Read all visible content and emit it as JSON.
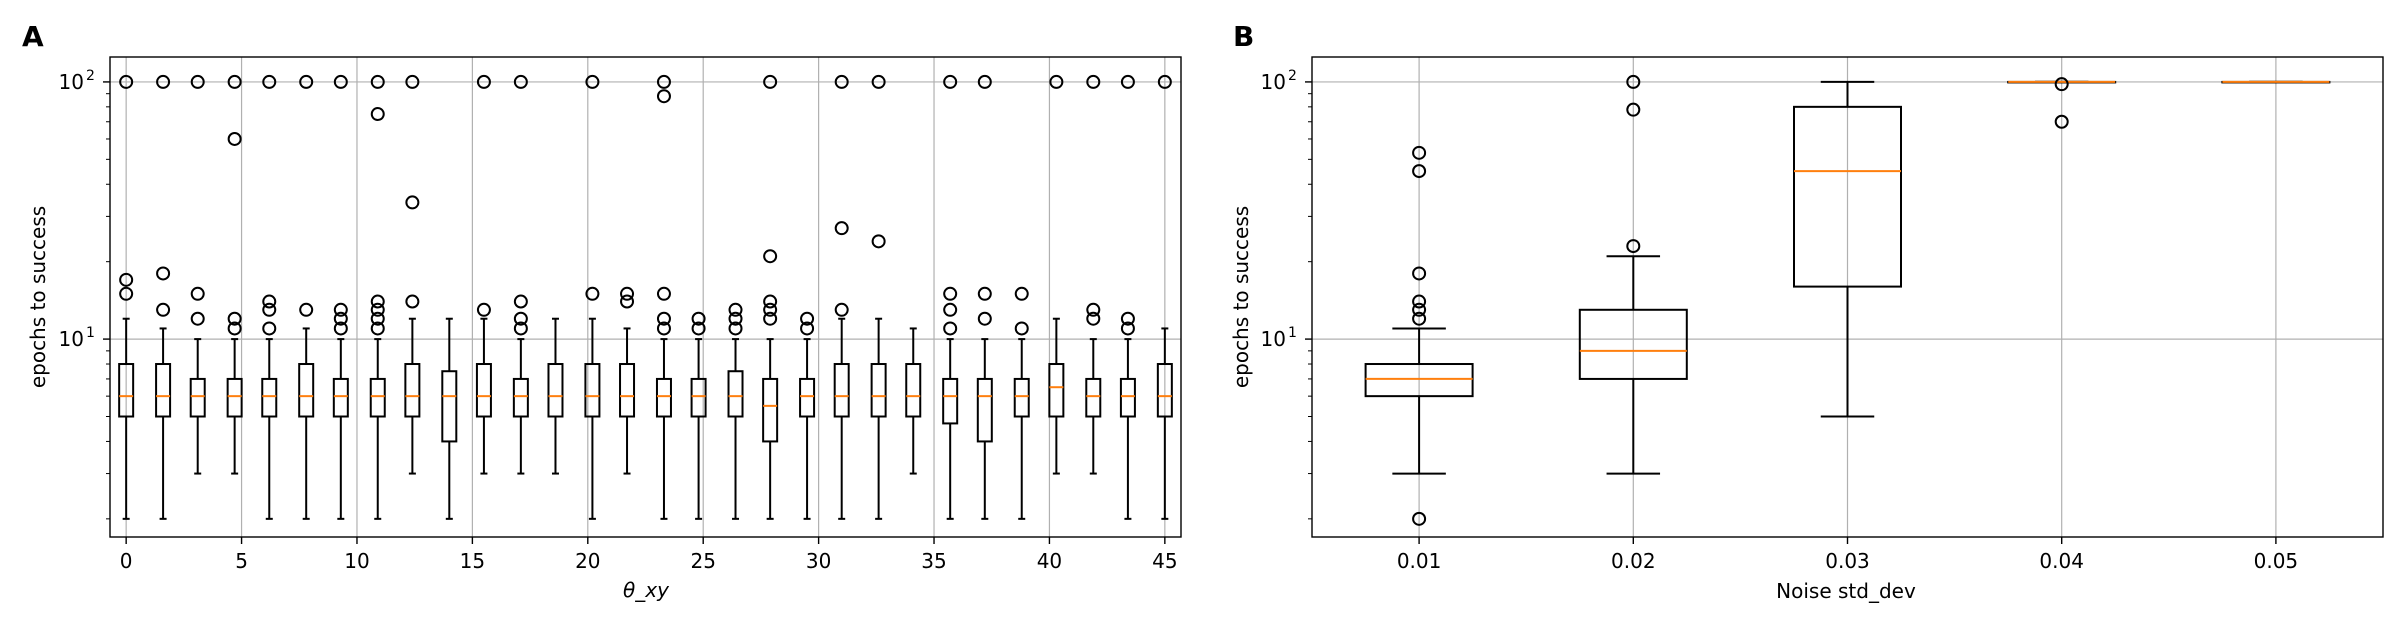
{
  "panels": [
    {
      "letter": "A",
      "chart_data": {
        "type": "box",
        "xlabel": "θ_xy",
        "ylabel": "epochs to success",
        "yscale": "log",
        "ylim": [
          1.7,
          125
        ],
        "xlim": [
          -0.7,
          45.7
        ],
        "grid": true,
        "x_ticks": [
          0,
          5,
          10,
          15,
          20,
          25,
          30,
          35,
          40,
          45
        ],
        "y_ticks": [
          {
            "value": 10,
            "label": "10",
            "exp": "1"
          },
          {
            "value": 100,
            "label": "10",
            "exp": "2"
          }
        ],
        "boxes": [
          {
            "x": 0.0,
            "whislo": 2,
            "q1": 5,
            "med": 6,
            "q3": 8,
            "whishi": 12,
            "fliers": [
              15,
              17,
              100
            ]
          },
          {
            "x": 1.6,
            "whislo": 2,
            "q1": 5,
            "med": 6,
            "q3": 8,
            "whishi": 11,
            "fliers": [
              13,
              18,
              100
            ]
          },
          {
            "x": 3.1,
            "whislo": 3,
            "q1": 5,
            "med": 6,
            "q3": 7,
            "whishi": 10,
            "fliers": [
              12,
              15,
              100
            ]
          },
          {
            "x": 4.7,
            "whislo": 3,
            "q1": 5,
            "med": 6,
            "q3": 7,
            "whishi": 10,
            "fliers": [
              11,
              12,
              60,
              100
            ]
          },
          {
            "x": 6.2,
            "whislo": 2,
            "q1": 5,
            "med": 6,
            "q3": 7,
            "whishi": 10,
            "fliers": [
              11,
              13,
              14,
              100
            ]
          },
          {
            "x": 7.8,
            "whislo": 2,
            "q1": 5,
            "med": 6,
            "q3": 8,
            "whishi": 11,
            "fliers": [
              13,
              100
            ]
          },
          {
            "x": 9.3,
            "whislo": 2,
            "q1": 5,
            "med": 6,
            "q3": 7,
            "whishi": 10,
            "fliers": [
              11,
              12,
              13,
              100
            ]
          },
          {
            "x": 10.9,
            "whislo": 2,
            "q1": 5,
            "med": 6,
            "q3": 7,
            "whishi": 10,
            "fliers": [
              11,
              12,
              13,
              14,
              75,
              100
            ]
          },
          {
            "x": 12.4,
            "whislo": 3,
            "q1": 5,
            "med": 6,
            "q3": 8,
            "whishi": 12,
            "fliers": [
              14,
              34,
              100
            ]
          },
          {
            "x": 14.0,
            "whislo": 2,
            "q1": 4,
            "med": 6,
            "q3": 7.5,
            "whishi": 12,
            "fliers": []
          },
          {
            "x": 15.5,
            "whislo": 3,
            "q1": 5,
            "med": 6,
            "q3": 8,
            "whishi": 12,
            "fliers": [
              13,
              100
            ]
          },
          {
            "x": 17.1,
            "whislo": 3,
            "q1": 5,
            "med": 6,
            "q3": 7,
            "whishi": 10,
            "fliers": [
              11,
              12,
              14,
              100
            ]
          },
          {
            "x": 18.6,
            "whislo": 3,
            "q1": 5,
            "med": 6,
            "q3": 8,
            "whishi": 12,
            "fliers": []
          },
          {
            "x": 20.2,
            "whislo": 2,
            "q1": 5,
            "med": 6,
            "q3": 8,
            "whishi": 12,
            "fliers": [
              15,
              100
            ]
          },
          {
            "x": 21.7,
            "whislo": 3,
            "q1": 5,
            "med": 6,
            "q3": 8,
            "whishi": 11,
            "fliers": [
              14,
              15
            ]
          },
          {
            "x": 23.3,
            "whislo": 2,
            "q1": 5,
            "med": 6,
            "q3": 7,
            "whishi": 10,
            "fliers": [
              11,
              12,
              15,
              88,
              100
            ]
          },
          {
            "x": 24.8,
            "whislo": 2,
            "q1": 5,
            "med": 6,
            "q3": 7,
            "whishi": 10,
            "fliers": [
              11,
              12
            ]
          },
          {
            "x": 26.4,
            "whislo": 2,
            "q1": 5,
            "med": 6,
            "q3": 7.5,
            "whishi": 10,
            "fliers": [
              11,
              12,
              13
            ]
          },
          {
            "x": 27.9,
            "whislo": 2,
            "q1": 4,
            "med": 5.5,
            "q3": 7,
            "whishi": 10,
            "fliers": [
              12,
              13,
              14,
              21,
              100
            ]
          },
          {
            "x": 29.5,
            "whislo": 2,
            "q1": 5,
            "med": 6,
            "q3": 7,
            "whishi": 10,
            "fliers": [
              11,
              12
            ]
          },
          {
            "x": 31.0,
            "whislo": 2,
            "q1": 5,
            "med": 6,
            "q3": 8,
            "whishi": 12,
            "fliers": [
              13,
              27,
              100
            ]
          },
          {
            "x": 32.6,
            "whislo": 2,
            "q1": 5,
            "med": 6,
            "q3": 8,
            "whishi": 12,
            "fliers": [
              24,
              100
            ]
          },
          {
            "x": 34.1,
            "whislo": 3,
            "q1": 5,
            "med": 6,
            "q3": 8,
            "whishi": 11,
            "fliers": []
          },
          {
            "x": 35.7,
            "whislo": 2,
            "q1": 4.7,
            "med": 6,
            "q3": 7,
            "whishi": 10,
            "fliers": [
              11,
              13,
              15,
              100
            ]
          },
          {
            "x": 37.2,
            "whislo": 2,
            "q1": 4,
            "med": 6,
            "q3": 7,
            "whishi": 10,
            "fliers": [
              12,
              15,
              100
            ]
          },
          {
            "x": 38.8,
            "whislo": 2,
            "q1": 5,
            "med": 6,
            "q3": 7,
            "whishi": 10,
            "fliers": [
              11,
              15
            ]
          },
          {
            "x": 40.3,
            "whislo": 3,
            "q1": 5,
            "med": 6.5,
            "q3": 8,
            "whishi": 12,
            "fliers": [
              100
            ]
          },
          {
            "x": 41.9,
            "whislo": 3,
            "q1": 5,
            "med": 6,
            "q3": 7,
            "whishi": 10,
            "fliers": [
              12,
              13,
              100
            ]
          },
          {
            "x": 43.4,
            "whislo": 2,
            "q1": 5,
            "med": 6,
            "q3": 7,
            "whishi": 10,
            "fliers": [
              11,
              12,
              100
            ]
          },
          {
            "x": 45.0,
            "whislo": 2,
            "q1": 5,
            "med": 6,
            "q3": 8,
            "whishi": 11,
            "fliers": [
              100
            ]
          }
        ]
      }
    },
    {
      "letter": "B",
      "chart_data": {
        "type": "box",
        "xlabel": "Noise std_dev",
        "ylabel": "epochs to success",
        "yscale": "log",
        "ylim": [
          1.7,
          125
        ],
        "grid": true,
        "categories": [
          "0.01",
          "0.02",
          "0.03",
          "0.04",
          "0.05"
        ],
        "y_ticks": [
          {
            "value": 10,
            "label": "10",
            "exp": "1"
          },
          {
            "value": 100,
            "label": "10",
            "exp": "2"
          }
        ],
        "boxes": [
          {
            "whislo": 3,
            "q1": 6,
            "med": 7,
            "q3": 8,
            "whishi": 11,
            "fliers": [
              2,
              12,
              13,
              14,
              18,
              45,
              53
            ]
          },
          {
            "whislo": 3,
            "q1": 7,
            "med": 9,
            "q3": 13,
            "whishi": 21,
            "fliers": [
              23,
              78,
              100
            ]
          },
          {
            "whislo": 5,
            "q1": 16,
            "med": 45,
            "q3": 80,
            "whishi": 100,
            "fliers": []
          },
          {
            "whislo": 100,
            "q1": 100,
            "med": 100,
            "q3": 100,
            "whishi": 100,
            "fliers": [
              70,
              98
            ]
          },
          {
            "whislo": 100,
            "q1": 100,
            "med": 100,
            "q3": 100,
            "whishi": 100,
            "fliers": []
          }
        ]
      }
    }
  ]
}
